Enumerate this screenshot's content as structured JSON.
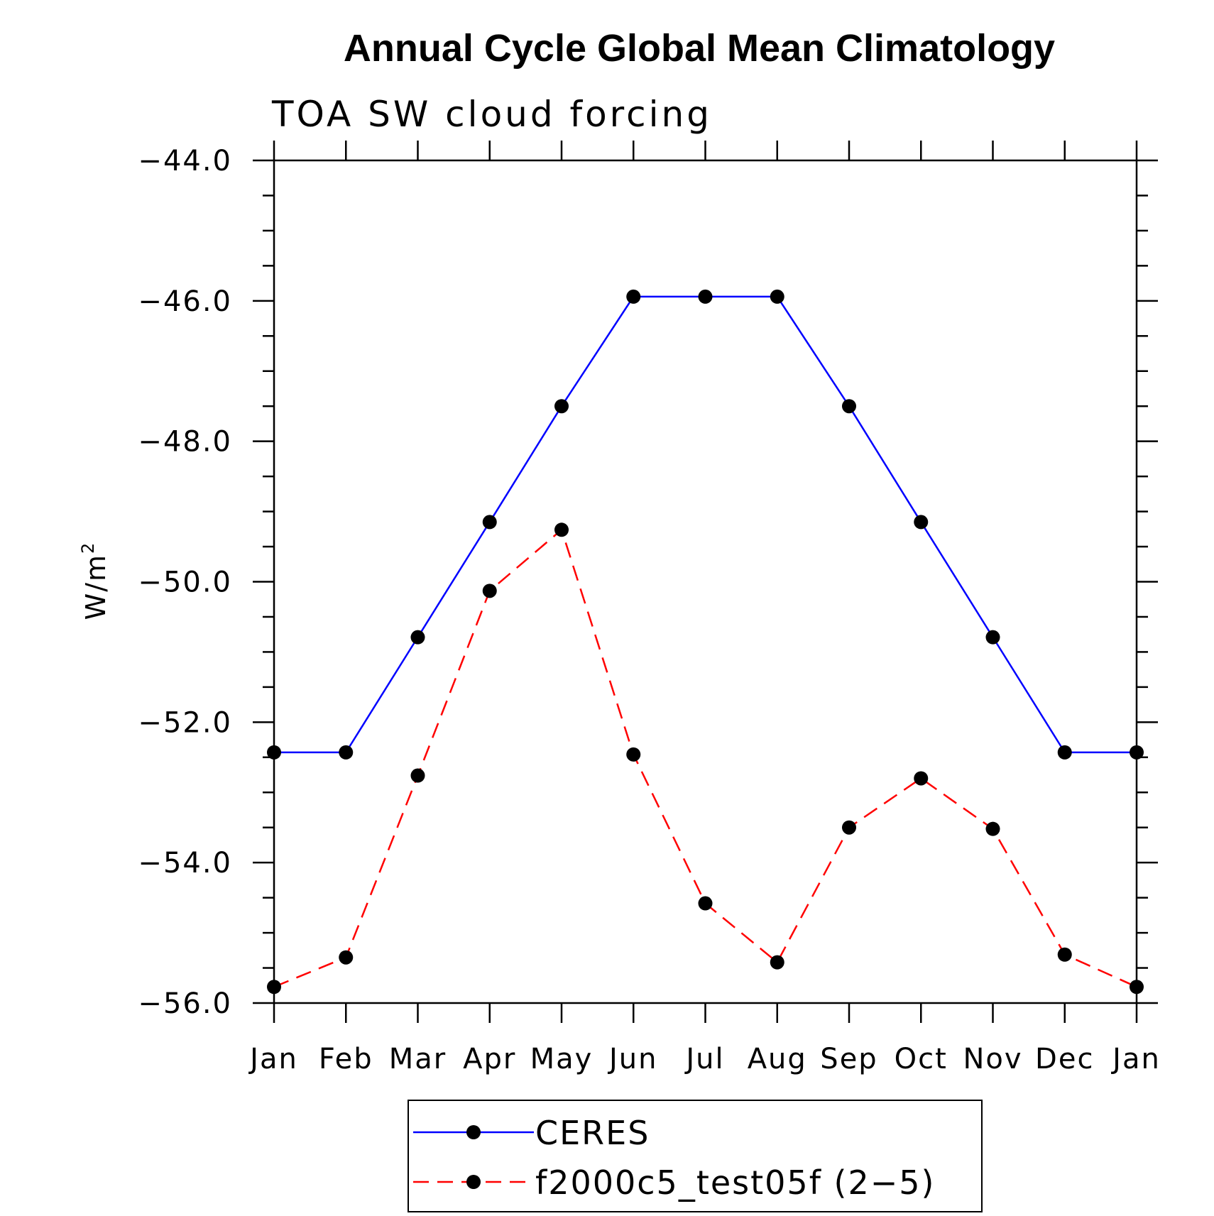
{
  "chart_data": {
    "type": "line",
    "title": "Annual Cycle Global Mean Climatology",
    "subtitle": "TOA SW cloud forcing",
    "xlabel": "",
    "ylabel": "W/m",
    "ylabel_superscript": "2",
    "categories": [
      "Jan",
      "Feb",
      "Mar",
      "Apr",
      "May",
      "Jun",
      "Jul",
      "Aug",
      "Sep",
      "Oct",
      "Nov",
      "Dec",
      "Jan"
    ],
    "ylim": [
      -56.0,
      -44.0
    ],
    "yticks": [
      -44.0,
      -46.0,
      -48.0,
      -50.0,
      -52.0,
      -54.0,
      -56.0
    ],
    "ytick_labels": [
      "−44.0",
      "−46.0",
      "−48.0",
      "−50.0",
      "−52.0",
      "−54.0",
      "−56.0"
    ],
    "series": [
      {
        "name": "CERES",
        "color": "#0000ff",
        "dash": "solid",
        "marker": "circle",
        "values": [
          -52.43,
          -52.43,
          -50.79,
          -49.15,
          -47.5,
          -45.94,
          -45.94,
          -45.94,
          -47.5,
          -49.15,
          -50.79,
          -52.43,
          -52.43
        ]
      },
      {
        "name": "f2000c5_test05f (2−5)",
        "color": "#ff0000",
        "dash": "dashed",
        "marker": "circle",
        "values": [
          -55.77,
          -55.35,
          -52.76,
          -50.13,
          -49.26,
          -52.46,
          -54.58,
          -55.42,
          -53.5,
          -52.8,
          -53.52,
          -55.31,
          -55.77
        ]
      }
    ],
    "legend_position": "bottom-center"
  }
}
